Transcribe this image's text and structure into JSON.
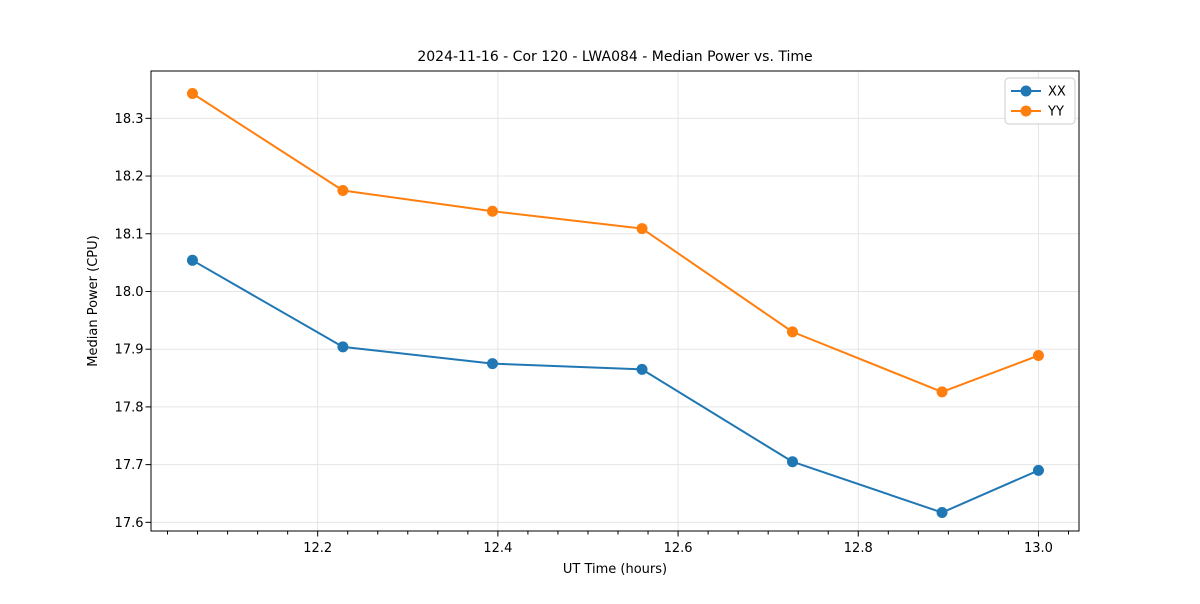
{
  "chart_data": {
    "type": "line",
    "title": "2024-11-16 - Cor 120 - LWA084 - Median Power vs. Time",
    "xlabel": "UT Time (hours)",
    "ylabel": "Median Power (CPU)",
    "x": [
      12.061,
      12.228,
      12.394,
      12.56,
      12.727,
      12.893,
      13.0
    ],
    "series": [
      {
        "name": "XX",
        "color": "#1f77b4",
        "values": [
          18.054,
          17.904,
          17.875,
          17.865,
          17.705,
          17.617,
          17.69
        ]
      },
      {
        "name": "YY",
        "color": "#ff7f0e",
        "values": [
          18.343,
          18.175,
          18.139,
          18.109,
          17.93,
          17.826,
          17.889
        ]
      }
    ],
    "xlim": [
      12.015,
      13.045
    ],
    "ylim": [
      17.585,
      18.382
    ],
    "xticks": {
      "values": [
        12.2,
        12.4,
        12.6,
        12.8,
        13.0
      ],
      "labels": [
        "12.2",
        "12.4",
        "12.6",
        "12.8",
        "13.0"
      ]
    },
    "yticks": {
      "values": [
        17.6,
        17.7,
        17.8,
        17.9,
        18.0,
        18.1,
        18.2,
        18.3
      ],
      "labels": [
        "17.6",
        "17.7",
        "17.8",
        "17.9",
        "18.0",
        "18.1",
        "18.2",
        "18.3"
      ]
    },
    "x_minor_subdivisions": 6,
    "grid": true,
    "grid_color": "#e5e5e5",
    "spine_color": "#000000",
    "background": "#ffffff",
    "marker": "circle",
    "marker_radius": 5.5,
    "line_width": 2,
    "legend": {
      "position": "upper right",
      "entries": [
        {
          "label": "XX",
          "color": "#1f77b4"
        },
        {
          "label": "YY",
          "color": "#ff7f0e"
        }
      ],
      "border_color": "#cccccc",
      "background": "#ffffff"
    }
  }
}
